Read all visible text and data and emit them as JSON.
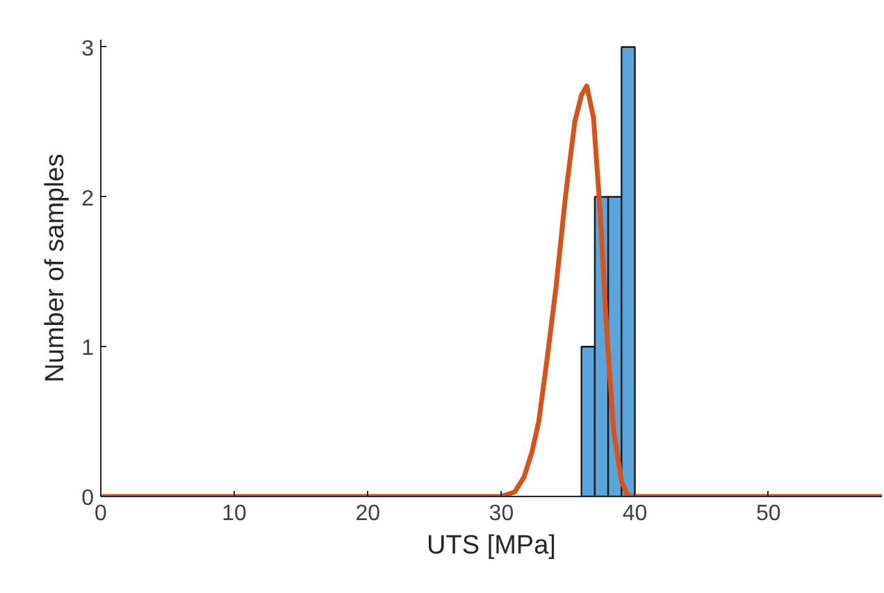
{
  "chart_data": {
    "type": "histogram",
    "xlabel": "UTS [MPa]",
    "ylabel": "Number of samples",
    "series": [
      {
        "bins": [
          31,
          32,
          33,
          34,
          35,
          36,
          37,
          38,
          39,
          40
        ],
        "values": [
          0,
          0,
          0,
          0,
          0,
          1,
          2,
          2,
          3
        ],
        "color": "#5aa5dc"
      },
      {
        "type": "line",
        "color": "#d95319",
        "x": [
          0,
          30,
          31,
          31.7,
          32.3,
          32.8,
          33.4,
          34.1,
          34.8,
          35.5,
          36,
          36.4,
          36.9,
          37.4,
          37.9,
          38.4,
          39,
          39.5,
          40,
          58.5
        ],
        "values": [
          0,
          0,
          0.03,
          0.13,
          0.3,
          0.5,
          0.9,
          1.4,
          2.0,
          2.5,
          2.68,
          2.74,
          2.53,
          1.9,
          1.1,
          0.45,
          0.1,
          0,
          0,
          0
        ]
      }
    ],
    "xlim": [
      0,
      58.5
    ],
    "ylim": [
      0,
      3.05
    ],
    "xticks": [
      0,
      10,
      20,
      30,
      40,
      50
    ],
    "yticks": [
      0,
      1,
      2,
      3
    ]
  }
}
